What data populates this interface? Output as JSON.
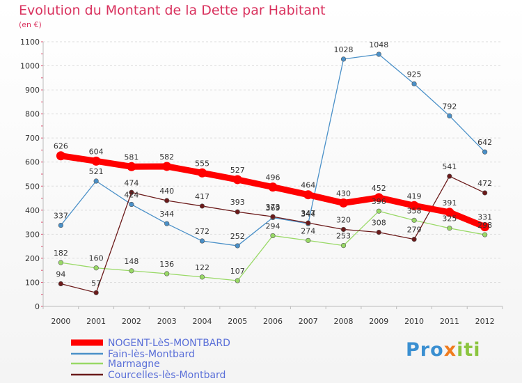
{
  "header": {
    "title": "Evolution du Montant de la Dette par Habitant",
    "subtitle": "(en €)"
  },
  "brand": {
    "text": "Proxiti",
    "letters": [
      {
        "ch": "P",
        "color": "#3a8fd1"
      },
      {
        "ch": "r",
        "color": "#3a8fd1"
      },
      {
        "ch": "o",
        "color": "#3a8fd1"
      },
      {
        "ch": "x",
        "color": "#f07c1e"
      },
      {
        "ch": "i",
        "color": "#8bc53f"
      },
      {
        "ch": "t",
        "color": "#8bc53f"
      },
      {
        "ch": "i",
        "color": "#8bc53f"
      }
    ]
  },
  "chart_data": {
    "type": "line",
    "title": "Evolution du Montant de la Dette par Habitant",
    "subtitle": "(en €)",
    "x": [
      "2000",
      "2001",
      "2002",
      "2003",
      "2004",
      "2005",
      "2006",
      "2007",
      "2008",
      "2009",
      "2010",
      "2011",
      "2012"
    ],
    "y_ticks": [
      0,
      100,
      200,
      300,
      400,
      500,
      600,
      700,
      800,
      900,
      1000,
      1100
    ],
    "ylim": [
      0,
      1100
    ],
    "grid": "horizontal dashed",
    "legend_position": "bottom-left",
    "series": [
      {
        "name": "NOGENT-LèS-MONTBARD",
        "color": "#ff0000",
        "values": [
          626,
          604,
          581,
          582,
          555,
          527,
          496,
          464,
          430,
          452,
          419,
          391,
          331
        ]
      },
      {
        "name": "Fain-lès-Montbard",
        "color": "#4a90c8",
        "values": [
          337,
          521,
          424,
          344,
          272,
          252,
          369,
          344,
          1028,
          1048,
          925,
          792,
          642
        ]
      },
      {
        "name": "Marmagne",
        "color": "#99d966",
        "values": [
          182,
          160,
          148,
          136,
          122,
          107,
          294,
          274,
          253,
          396,
          358,
          325,
          298
        ]
      },
      {
        "name": "Courcelles-lès-Montbard",
        "color": "#6b1a1a",
        "values": [
          94,
          57,
          474,
          440,
          417,
          393,
          373,
          347,
          320,
          308,
          279,
          541,
          472
        ]
      }
    ]
  }
}
